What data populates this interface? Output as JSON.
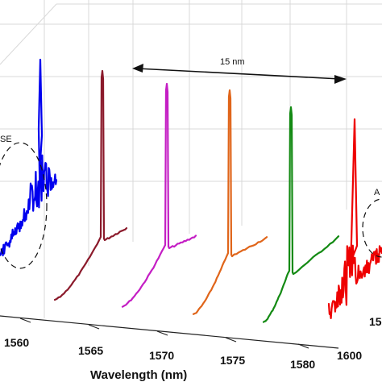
{
  "chart_data": {
    "type": "line",
    "title": "",
    "xlabel": "Wavelength (nm)",
    "ylabel": "",
    "zlabel": "",
    "x_ticks": [
      "1560",
      "1565",
      "1570",
      "1575",
      "1580"
    ],
    "x_ticks_far": [
      "1600"
    ],
    "z_tick_partial": "15",
    "annotations": {
      "spacing_label": "15 nm",
      "left_circle_label": "SE",
      "right_circle_label": "A"
    },
    "series": [
      {
        "color": "#0000ee",
        "peak_wavelength": 1561,
        "style": "noisy"
      },
      {
        "color": "#8b1a2b",
        "peak_wavelength": 1566,
        "style": "lasing"
      },
      {
        "color": "#c41ec4",
        "peak_wavelength": 1569,
        "style": "lasing"
      },
      {
        "color": "#e0651a",
        "peak_wavelength": 1572,
        "style": "lasing"
      },
      {
        "color": "#138a13",
        "peak_wavelength": 1575,
        "style": "lasing"
      },
      {
        "color": "#ee0000",
        "peak_wavelength": 1580,
        "style": "noisy"
      }
    ],
    "grid": true
  }
}
